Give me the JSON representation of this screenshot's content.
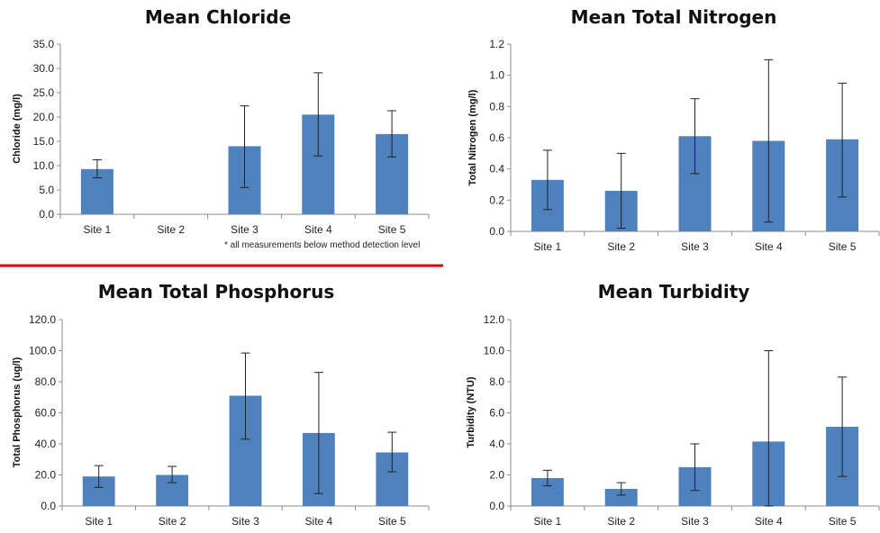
{
  "chart_data": [
    {
      "type": "bar",
      "title": "Mean Chloride",
      "ylabel": "Chloride (mg/l)",
      "categories": [
        "Site 1",
        "Site 2",
        "Site 3",
        "Site 4",
        "Site 5"
      ],
      "values": [
        9.3,
        null,
        14.0,
        20.5,
        16.5
      ],
      "error_low": [
        7.5,
        null,
        5.5,
        12.0,
        11.8
      ],
      "error_high": [
        11.2,
        null,
        22.3,
        29.1,
        21.3
      ],
      "ylim": [
        0,
        35
      ],
      "ytick_step": 5,
      "ytick_decimals": 1,
      "note": "* all measurements below method detection level"
    },
    {
      "type": "bar",
      "title": "Mean Total Nitrogen",
      "ylabel": "Total Nitrogen (mg/l)",
      "categories": [
        "Site 1",
        "Site 2",
        "Site 3",
        "Site 4",
        "Site 5"
      ],
      "values": [
        0.33,
        0.26,
        0.61,
        0.58,
        0.59
      ],
      "error_low": [
        0.14,
        0.02,
        0.37,
        0.06,
        0.22
      ],
      "error_high": [
        0.52,
        0.5,
        0.85,
        1.1,
        0.95
      ],
      "ylim": [
        0,
        1.2
      ],
      "ytick_step": 0.2,
      "ytick_decimals": 1
    },
    {
      "type": "bar",
      "title": "Mean Total Phosphorus",
      "ylabel": "Total Phosphorus (ug/l)",
      "categories": [
        "Site 1",
        "Site 2",
        "Site 3",
        "Site 4",
        "Site 5"
      ],
      "values": [
        19.0,
        20.0,
        71.0,
        47.0,
        34.5
      ],
      "error_low": [
        12.0,
        15.0,
        43.0,
        8.0,
        22.0
      ],
      "error_high": [
        26.0,
        25.5,
        98.5,
        86.0,
        47.5
      ],
      "ylim": [
        0,
        120
      ],
      "ytick_step": 20,
      "ytick_decimals": 1
    },
    {
      "type": "bar",
      "title": "Mean Turbidity",
      "ylabel": "Turbidity (NTU)",
      "categories": [
        "Site 1",
        "Site 2",
        "Site 3",
        "Site 4",
        "Site 5"
      ],
      "values": [
        1.8,
        1.1,
        2.5,
        4.15,
        5.1
      ],
      "error_low": [
        1.3,
        0.7,
        1.0,
        0.0,
        1.9
      ],
      "error_high": [
        2.3,
        1.5,
        4.0,
        10.0,
        8.3
      ],
      "ylim": [
        0,
        12
      ],
      "ytick_step": 2,
      "ytick_decimals": 1
    }
  ],
  "colors": {
    "bar": "#4f81bd",
    "divider": "#e00000"
  }
}
